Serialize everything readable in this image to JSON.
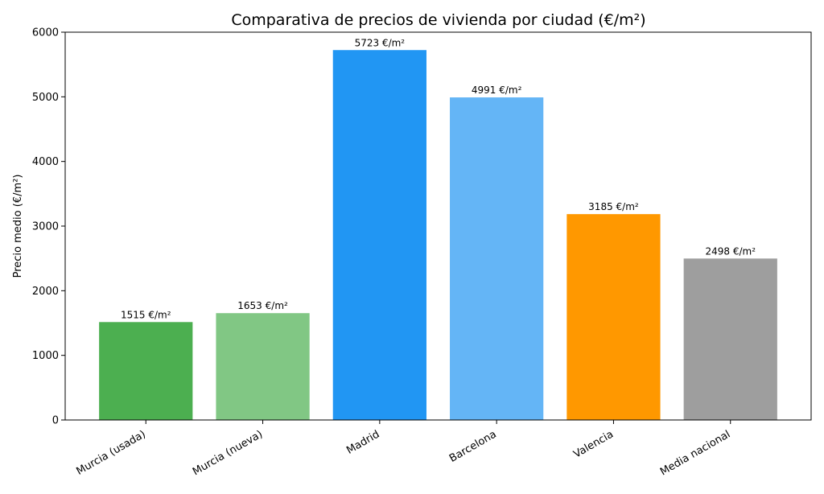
{
  "chart_data": {
    "type": "bar",
    "title": "Comparativa de precios de vivienda por ciudad (€/m²)",
    "xlabel": "",
    "ylabel": "Precio medio (€/m²)",
    "ylim": [
      0,
      6000
    ],
    "yticks": [
      0,
      1000,
      2000,
      3000,
      4000,
      5000,
      6000
    ],
    "categories": [
      "Murcia (usada)",
      "Murcia (nueva)",
      "Madrid",
      "Barcelona",
      "Valencia",
      "Media nacional"
    ],
    "values": [
      1515,
      1653,
      5723,
      4991,
      3185,
      2498
    ],
    "data_labels": [
      "1515 €/m²",
      "1653 €/m²",
      "5723 €/m²",
      "4991 €/m²",
      "3185 €/m²",
      "2498 €/m²"
    ],
    "colors": [
      "#4caf50",
      "#81c784",
      "#2196f3",
      "#64b5f6",
      "#ff9800",
      "#9e9e9e"
    ],
    "grid": false,
    "legend": "none"
  }
}
